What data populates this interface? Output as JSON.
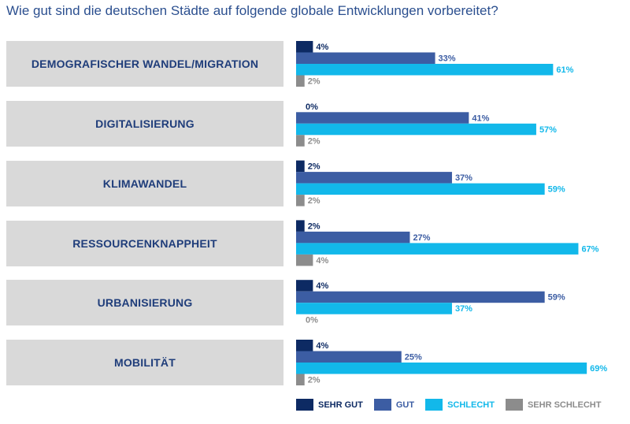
{
  "title": "Wie gut sind die deutschen Städte auf folgende globale Entwicklungen vorbereitet?",
  "chart_data": {
    "type": "bar",
    "orientation": "horizontal",
    "categories": [
      "DEMOGRAFISCHER WANDEL/MIGRATION",
      "DIGITALISIERUNG",
      "KLIMAWANDEL",
      "RESSOURCENKNAPPHEIT",
      "URBANISIERUNG",
      "MOBILITÄT"
    ],
    "series": [
      {
        "name": "SEHR GUT",
        "color": "#0d2a63",
        "values": [
          4,
          0,
          2,
          2,
          4,
          4
        ]
      },
      {
        "name": "GUT",
        "color": "#3c5da3",
        "values": [
          33,
          41,
          37,
          27,
          59,
          25
        ]
      },
      {
        "name": "SCHLECHT",
        "color": "#12b8ea",
        "values": [
          61,
          57,
          59,
          67,
          37,
          69
        ]
      },
      {
        "name": "SEHR SCHLECHT",
        "color": "#8c8c8c",
        "values": [
          2,
          2,
          2,
          4,
          0,
          2
        ]
      }
    ],
    "value_suffix": "%",
    "legend_position": "bottom",
    "grid": false
  }
}
